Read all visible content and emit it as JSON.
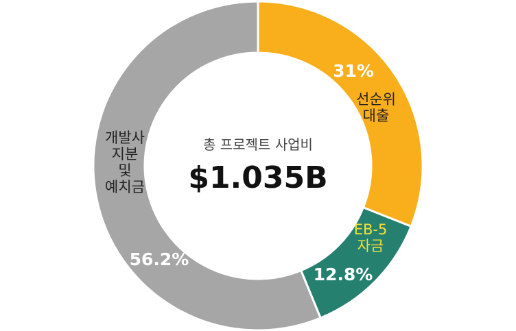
{
  "chart_data": {
    "type": "donut",
    "title": "총 프로젝트 사업비",
    "subtitle": "$1.035B",
    "categories": [
      "선순위\n대출",
      "EB-5\n자금",
      "개발사\n지분\n및\n예치금"
    ],
    "values": [
      31,
      12.8,
      56.2
    ],
    "value_labels": [
      "31%",
      "12.8%",
      "56.2%"
    ],
    "colors": [
      "#f9ae1b",
      "#268070",
      "#a6a6a6"
    ]
  }
}
